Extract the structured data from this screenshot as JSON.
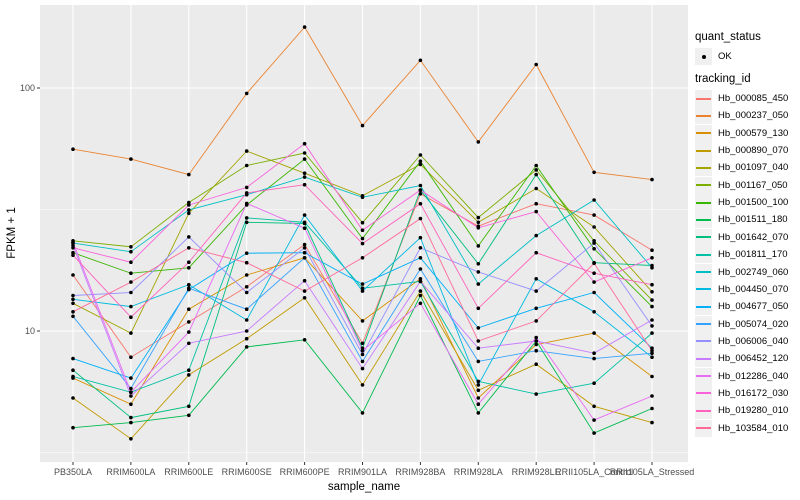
{
  "figure": {
    "background": "#FFFFFF",
    "panel_bg": "#EBEBEB",
    "grid_color": "#FFFFFF",
    "axis_text_color": "#4D4D4D",
    "tick_mark_color": "#333333",
    "point_color": "#000000"
  },
  "legend": {
    "quant_status_title": "quant_status",
    "ok_label": "OK",
    "tracking_title": "tracking_id"
  },
  "chart_data": {
    "type": "line",
    "title": "",
    "xlabel": "sample_name",
    "ylabel": "FPKM + 1",
    "y_scale": "log10",
    "ylim": [
      2.9,
      220
    ],
    "y_ticks": [
      {
        "value": 10,
        "label": "10"
      },
      {
        "value": 100,
        "label": "100"
      }
    ],
    "y_minor_ticks": [
      3.1623,
      31.623
    ],
    "grid": true,
    "legend_position": "right",
    "point_shape": "filled-circle",
    "quant_status": "OK",
    "categories": [
      "PB350LA",
      "RRIM600LA",
      "RRIM600LE",
      "RRIM600SE",
      "RRIM600PE",
      "RRIM901LA",
      "RRIM928BA",
      "RRIM928LA",
      "RRIM928LE",
      "RRII105LA_Control",
      "RRII105LA_Stressed"
    ],
    "series": [
      {
        "name": "Hb_000085_450",
        "color": "#F8766D",
        "values": [
          17.0,
          7.8,
          10.9,
          15.2,
          22.7,
          8.9,
          36.7,
          27.0,
          33.4,
          30.0,
          21.5
        ]
      },
      {
        "name": "Hb_000237_050",
        "color": "#EA8331",
        "values": [
          56.0,
          51.0,
          44.0,
          95.0,
          178.0,
          70.0,
          130.0,
          60.0,
          125.0,
          45.0,
          42.0
        ]
      },
      {
        "name": "Hb_000579_130",
        "color": "#D89000",
        "values": [
          6.4,
          5.0,
          12.3,
          17.0,
          20.0,
          11.0,
          16.4,
          5.3,
          8.8,
          9.8,
          6.5
        ]
      },
      {
        "name": "Hb_000890_070",
        "color": "#C09B00",
        "values": [
          5.3,
          3.6,
          6.6,
          9.3,
          13.7,
          6.0,
          14.6,
          5.7,
          7.3,
          4.9,
          4.2
        ]
      },
      {
        "name": "Hb_001097_040",
        "color": "#A3A500",
        "values": [
          13.0,
          9.8,
          30.5,
          55.0,
          44.6,
          36.0,
          48.5,
          28.0,
          38.6,
          26.8,
          14.5
        ]
      },
      {
        "name": "Hb_001167_050",
        "color": "#7CAE00",
        "values": [
          23.5,
          22.2,
          33.8,
          48.0,
          54.0,
          27.9,
          53.0,
          29.3,
          46.0,
          23.5,
          13.4
        ]
      },
      {
        "name": "Hb_001500_100",
        "color": "#39B600",
        "values": [
          21.0,
          17.3,
          18.2,
          33.0,
          51.0,
          24.0,
          50.0,
          22.4,
          48.0,
          21.8,
          12.6
        ]
      },
      {
        "name": "Hb_001511_180",
        "color": "#00BB4E",
        "values": [
          4.0,
          4.2,
          4.5,
          8.6,
          9.2,
          4.6,
          14.0,
          4.6,
          9.1,
          3.8,
          4.8
        ]
      },
      {
        "name": "Hb_001642_070",
        "color": "#00BF7D",
        "values": [
          6.9,
          4.4,
          4.9,
          28.0,
          27.7,
          8.5,
          38.0,
          18.9,
          44.0,
          19.1,
          18.6
        ]
      },
      {
        "name": "Hb_001811_170",
        "color": "#00C1A3",
        "values": [
          6.5,
          5.6,
          6.9,
          29.2,
          28.0,
          15.0,
          16.0,
          6.2,
          5.5,
          6.1,
          9.8
        ]
      },
      {
        "name": "Hb_002749_060",
        "color": "#00BFC4",
        "values": [
          23.0,
          21.2,
          31.5,
          36.4,
          43.0,
          35.5,
          39.7,
          15.6,
          24.7,
          34.6,
          18.2
        ]
      },
      {
        "name": "Hb_004450_070",
        "color": "#00BAE0",
        "values": [
          13.5,
          12.6,
          15.5,
          11.1,
          30.0,
          14.6,
          24.2,
          6.0,
          16.4,
          12.0,
          7.8
        ]
      },
      {
        "name": "Hb_004677_050",
        "color": "#00B0F6",
        "values": [
          7.7,
          6.4,
          14.8,
          20.9,
          21.0,
          15.6,
          20.0,
          10.3,
          12.4,
          14.4,
          8.5
        ]
      },
      {
        "name": "Hb_005074_020",
        "color": "#35A2FF",
        "values": [
          11.5,
          5.8,
          15.0,
          12.3,
          20.0,
          7.5,
          18.0,
          7.5,
          8.3,
          7.7,
          8.1
        ]
      },
      {
        "name": "Hb_006006_040",
        "color": "#9590FF",
        "values": [
          14.0,
          14.4,
          24.4,
          14.4,
          22.0,
          8.0,
          22.0,
          17.5,
          14.6,
          23.0,
          10.5
        ]
      },
      {
        "name": "Hb_006452_120",
        "color": "#C77CFF",
        "values": [
          22.5,
          5.4,
          8.9,
          10.0,
          16.1,
          7.0,
          16.0,
          8.5,
          9.1,
          8.1,
          11.1
        ]
      },
      {
        "name": "Hb_012286_040",
        "color": "#E76BF3",
        "values": [
          23.2,
          5.6,
          9.9,
          33.5,
          26.5,
          8.3,
          13.0,
          5.0,
          9.4,
          4.3,
          5.4
        ]
      },
      {
        "name": "Hb_016172_030",
        "color": "#FA62DB",
        "values": [
          22.0,
          19.2,
          33.0,
          39.0,
          59.0,
          26.0,
          38.0,
          26.6,
          31.0,
          15.9,
          20.0
        ]
      },
      {
        "name": "Hb_019280_010",
        "color": "#FF62BC",
        "values": [
          20.5,
          11.4,
          19.2,
          37.0,
          40.0,
          22.9,
          33.4,
          12.4,
          21.0,
          17.3,
          15.5
        ]
      },
      {
        "name": "Hb_103584_010",
        "color": "#FF6A98",
        "values": [
          12.0,
          15.9,
          22.0,
          19.1,
          14.6,
          20.0,
          29.0,
          9.1,
          11.0,
          19.0,
          8.3
        ]
      }
    ]
  }
}
